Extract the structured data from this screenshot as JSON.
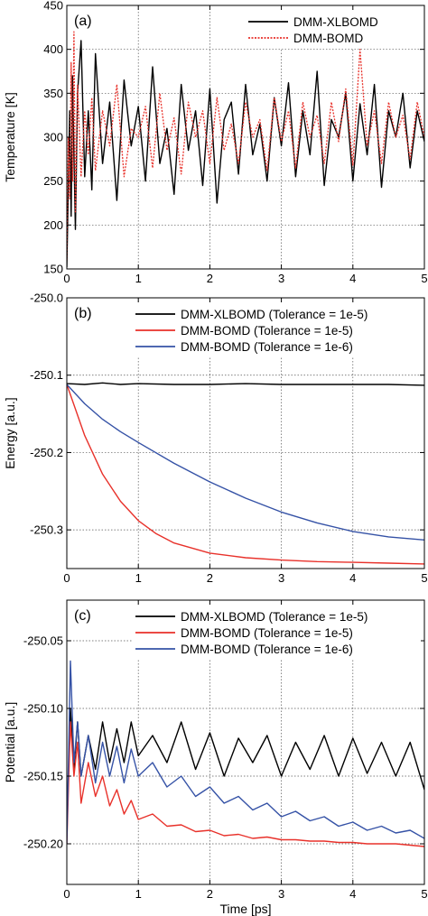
{
  "chart_data": [
    {
      "type": "line",
      "panel_label": "(a)",
      "xlabel": "",
      "ylabel": "Temperature [K]",
      "xlim": [
        0,
        5
      ],
      "ylim": [
        150,
        450
      ],
      "xticks": [
        0,
        1,
        2,
        3,
        4,
        5
      ],
      "yticks": [
        150,
        200,
        250,
        300,
        350,
        400,
        450
      ],
      "grid": true,
      "legend": "top-right",
      "series": [
        {
          "name": "DMM-XLBOMD",
          "color": "#000000",
          "style": "solid",
          "description": "fluctuating",
          "x": [
            0,
            0.02,
            0.04,
            0.06,
            0.08,
            0.1,
            0.12,
            0.15,
            0.2,
            0.25,
            0.3,
            0.35,
            0.4,
            0.5,
            0.6,
            0.7,
            0.8,
            0.9,
            1.0,
            1.1,
            1.2,
            1.3,
            1.4,
            1.5,
            1.6,
            1.7,
            1.8,
            1.9,
            2.0,
            2.1,
            2.2,
            2.3,
            2.4,
            2.5,
            2.6,
            2.7,
            2.8,
            2.9,
            3.0,
            3.1,
            3.2,
            3.3,
            3.4,
            3.5,
            3.6,
            3.7,
            3.8,
            3.9,
            4.0,
            4.1,
            4.2,
            4.3,
            4.4,
            4.5,
            4.6,
            4.7,
            4.8,
            4.9,
            5.0
          ],
          "values": [
            152,
            240,
            330,
            210,
            370,
            280,
            195,
            350,
            410,
            255,
            330,
            240,
            395,
            270,
            340,
            228,
            365,
            290,
            335,
            250,
            380,
            270,
            310,
            235,
            360,
            285,
            330,
            245,
            355,
            225,
            320,
            340,
            258,
            360,
            280,
            315,
            250,
            345,
            290,
            362,
            255,
            330,
            280,
            375,
            245,
            320,
            300,
            350,
            250,
            338,
            280,
            360,
            243,
            330,
            300,
            350,
            265,
            330,
            295
          ]
        },
        {
          "name": "DMM-BOMD",
          "color": "#e8312a",
          "style": "dotted",
          "description": "fluctuating",
          "x": [
            0,
            0.02,
            0.04,
            0.06,
            0.08,
            0.1,
            0.12,
            0.15,
            0.2,
            0.25,
            0.3,
            0.35,
            0.4,
            0.5,
            0.6,
            0.7,
            0.8,
            0.9,
            1.0,
            1.1,
            1.2,
            1.3,
            1.4,
            1.5,
            1.6,
            1.7,
            1.8,
            1.9,
            2.0,
            2.1,
            2.2,
            2.3,
            2.4,
            2.5,
            2.6,
            2.7,
            2.8,
            2.9,
            3.0,
            3.1,
            3.2,
            3.3,
            3.4,
            3.5,
            3.6,
            3.7,
            3.8,
            3.9,
            4.0,
            4.1,
            4.2,
            4.3,
            4.4,
            4.5,
            4.6,
            4.7,
            4.8,
            4.9,
            5.0
          ],
          "values": [
            160,
            300,
            230,
            385,
            250,
            420,
            215,
            360,
            255,
            330,
            280,
            345,
            262,
            330,
            290,
            360,
            255,
            310,
            300,
            335,
            265,
            350,
            285,
            322,
            258,
            340,
            300,
            330,
            270,
            345,
            285,
            315,
            270,
            340,
            300,
            320,
            262,
            345,
            295,
            330,
            265,
            340,
            300,
            325,
            270,
            340,
            295,
            355,
            268,
            400,
            290,
            330,
            270,
            340,
            300,
            325,
            275,
            340,
            300
          ]
        }
      ]
    },
    {
      "type": "line",
      "panel_label": "(b)",
      "xlabel": "",
      "ylabel": "Energy [a.u.]",
      "xlim": [
        0,
        5
      ],
      "ylim": [
        -250.35,
        -250.0
      ],
      "ytick_step": 0.1,
      "xticks": [
        0,
        1,
        2,
        3,
        4,
        5
      ],
      "ytick_labels": [
        "-250.0",
        "-250.1",
        "-250.2",
        "-250.3"
      ],
      "grid": true,
      "legend": "top-right",
      "series": [
        {
          "name": "DMM-XLBOMD (Tolerance = 1e-5)",
          "color": "#000000",
          "x": [
            0,
            0.25,
            0.5,
            0.75,
            1.0,
            1.5,
            2.0,
            2.5,
            3.0,
            3.5,
            4.0,
            4.5,
            5.0
          ],
          "values": [
            -250.111,
            -250.112,
            -250.11,
            -250.112,
            -250.111,
            -250.112,
            -250.112,
            -250.111,
            -250.112,
            -250.112,
            -250.112,
            -250.112,
            -250.113
          ]
        },
        {
          "name": "DMM-BOMD (Tolerance = 1e-5)",
          "color": "#e8312a",
          "x": [
            0,
            0.25,
            0.5,
            0.75,
            1.0,
            1.25,
            1.5,
            2.0,
            2.5,
            3.0,
            3.5,
            4.0,
            4.5,
            5.0
          ],
          "values": [
            -250.112,
            -250.178,
            -250.228,
            -250.263,
            -250.288,
            -250.305,
            -250.317,
            -250.33,
            -250.336,
            -250.339,
            -250.341,
            -250.342,
            -250.343,
            -250.344
          ]
        },
        {
          "name": "DMM-BOMD (Tolerance = 1e-6)",
          "color": "#3552a6",
          "x": [
            0,
            0.25,
            0.5,
            0.75,
            1.0,
            1.5,
            2.0,
            2.5,
            3.0,
            3.5,
            4.0,
            4.5,
            5.0
          ],
          "values": [
            -250.112,
            -250.137,
            -250.157,
            -250.173,
            -250.187,
            -250.214,
            -250.238,
            -250.259,
            -250.277,
            -250.291,
            -250.302,
            -250.309,
            -250.313
          ]
        }
      ]
    },
    {
      "type": "line",
      "panel_label": "(c)",
      "xlabel": "Time [ps]",
      "ylabel": "Potential [a.u.]",
      "xlim": [
        0,
        5
      ],
      "ylim": [
        -250.23,
        -250.02
      ],
      "xticks": [
        0,
        1,
        2,
        3,
        4,
        5
      ],
      "ytick_values": [
        -250.05,
        -250.1,
        -250.15,
        -250.2
      ],
      "ytick_labels": [
        "-250.05",
        "-250.10",
        "-250.15",
        "-250.20"
      ],
      "grid": true,
      "legend": "top-right",
      "series": [
        {
          "name": "DMM-XLBOMD (Tolerance = 1e-5)",
          "color": "#000000",
          "description": "fluctuating",
          "x": [
            0,
            0.05,
            0.1,
            0.15,
            0.2,
            0.3,
            0.4,
            0.5,
            0.6,
            0.7,
            0.8,
            0.9,
            1.0,
            1.2,
            1.4,
            1.6,
            1.8,
            2.0,
            2.2,
            2.4,
            2.6,
            2.8,
            3.0,
            3.2,
            3.4,
            3.6,
            3.8,
            4.0,
            4.2,
            4.4,
            4.6,
            4.8,
            5.0
          ],
          "values": [
            -250.19,
            -250.1,
            -250.145,
            -250.11,
            -250.15,
            -250.12,
            -250.145,
            -250.11,
            -250.14,
            -250.115,
            -250.14,
            -250.11,
            -250.135,
            -250.12,
            -250.14,
            -250.11,
            -250.145,
            -250.118,
            -250.15,
            -250.122,
            -250.14,
            -250.12,
            -250.15,
            -250.125,
            -250.145,
            -250.12,
            -250.15,
            -250.122,
            -250.148,
            -250.125,
            -250.15,
            -250.125,
            -250.16
          ]
        },
        {
          "name": "DMM-BOMD (Tolerance = 1e-5)",
          "color": "#e8312a",
          "description": "fluctuating",
          "x": [
            0,
            0.05,
            0.1,
            0.15,
            0.2,
            0.3,
            0.4,
            0.5,
            0.6,
            0.7,
            0.8,
            0.9,
            1.0,
            1.2,
            1.4,
            1.6,
            1.8,
            2.0,
            2.2,
            2.4,
            2.6,
            2.8,
            3.0,
            3.2,
            3.4,
            3.6,
            3.8,
            4.0,
            4.2,
            4.4,
            4.6,
            4.8,
            5.0
          ],
          "values": [
            -250.2,
            -250.11,
            -250.15,
            -250.125,
            -250.17,
            -250.14,
            -250.165,
            -250.15,
            -250.172,
            -250.16,
            -250.178,
            -250.168,
            -250.182,
            -250.178,
            -250.187,
            -250.186,
            -250.191,
            -250.19,
            -250.194,
            -250.193,
            -250.196,
            -250.195,
            -250.197,
            -250.197,
            -250.198,
            -250.198,
            -250.199,
            -250.199,
            -250.2,
            -250.2,
            -250.2,
            -250.201,
            -250.202
          ]
        },
        {
          "name": "DMM-BOMD (Tolerance = 1e-6)",
          "color": "#3552a6",
          "description": "fluctuating",
          "x": [
            0,
            0.05,
            0.1,
            0.15,
            0.2,
            0.3,
            0.4,
            0.5,
            0.6,
            0.7,
            0.8,
            0.9,
            1.0,
            1.2,
            1.4,
            1.6,
            1.8,
            2.0,
            2.2,
            2.4,
            2.6,
            2.8,
            3.0,
            3.2,
            3.4,
            3.6,
            3.8,
            4.0,
            4.2,
            4.4,
            4.6,
            4.8,
            5.0
          ],
          "values": [
            -250.2,
            -250.065,
            -250.14,
            -250.11,
            -250.15,
            -250.12,
            -250.155,
            -250.125,
            -250.15,
            -250.128,
            -250.155,
            -250.13,
            -250.15,
            -250.14,
            -250.158,
            -250.15,
            -250.165,
            -250.158,
            -250.17,
            -250.165,
            -250.175,
            -250.17,
            -250.18,
            -250.176,
            -250.183,
            -250.18,
            -250.187,
            -250.184,
            -250.19,
            -250.187,
            -250.192,
            -250.19,
            -250.196
          ]
        }
      ]
    }
  ]
}
